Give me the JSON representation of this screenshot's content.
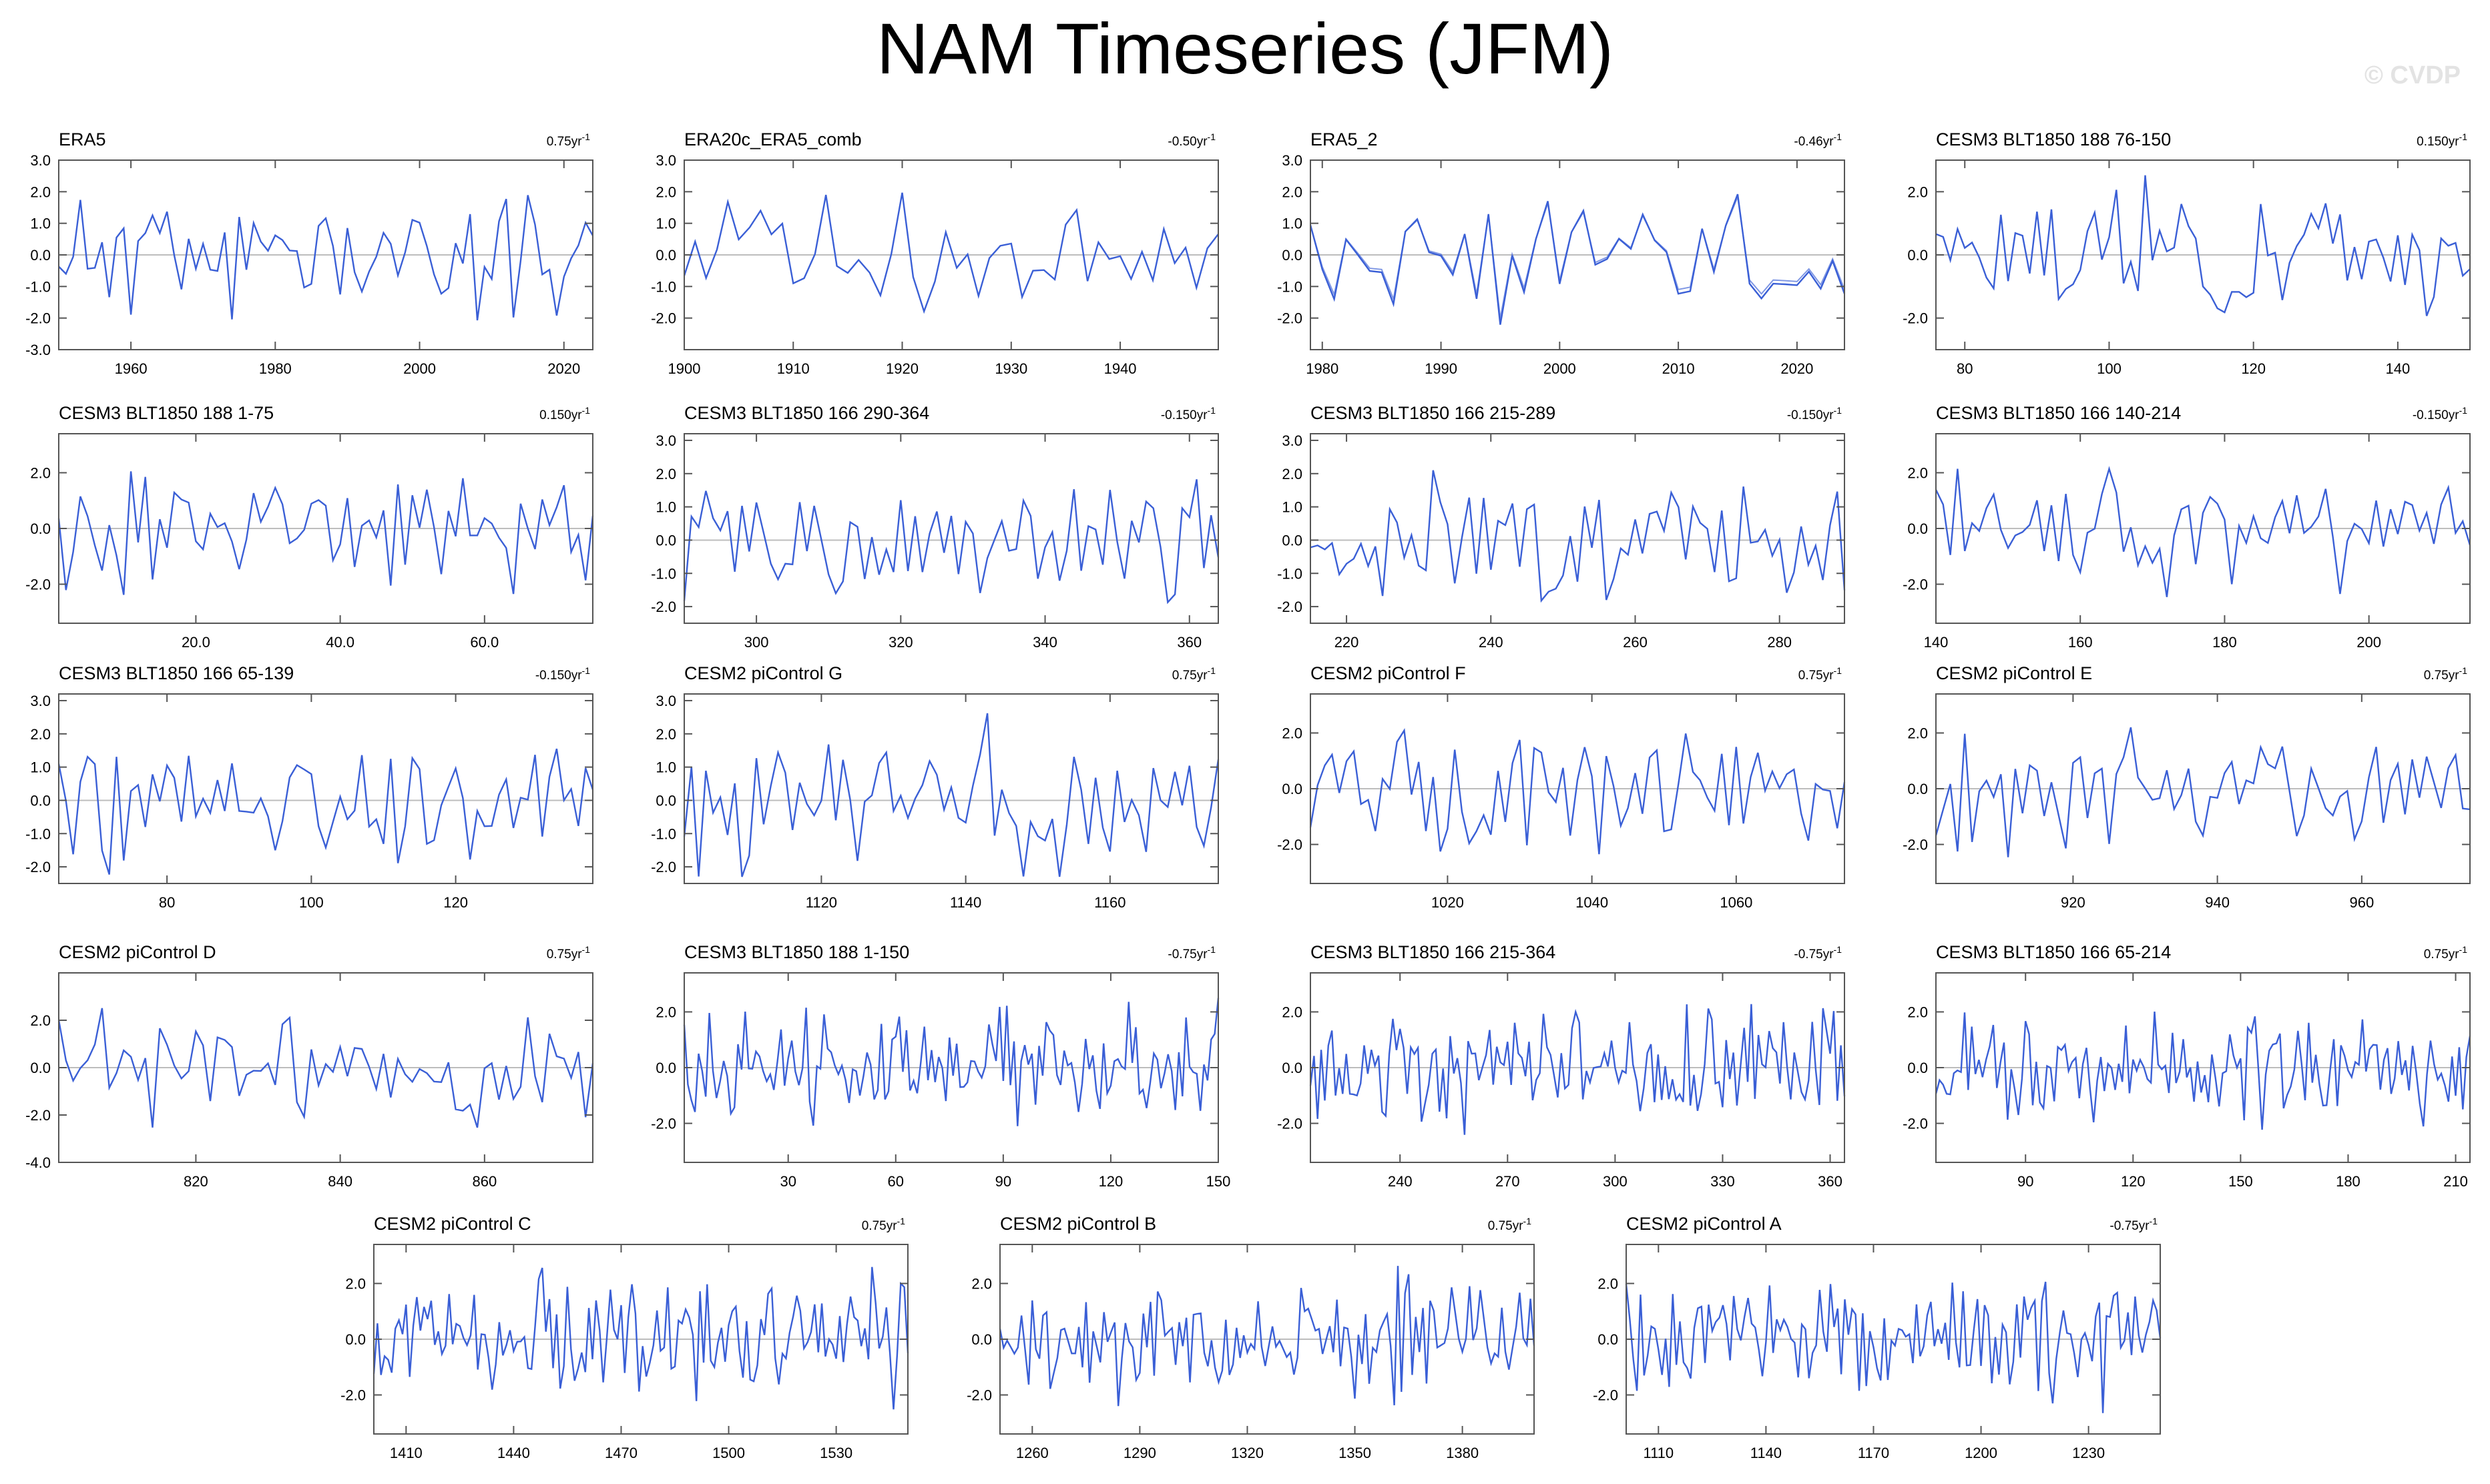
{
  "title": "NAM Timeseries (JFM)",
  "watermark": "© CVDP",
  "colors": {
    "line": "#3a5fd6",
    "zero": "#bdbdbd",
    "frame": "#555555"
  },
  "chart_data": [
    {
      "type": "line",
      "title": "ERA5",
      "trend": "0.75yr",
      "xlim": [
        1950,
        2024
      ],
      "ylim": [
        -3,
        3
      ],
      "xticks": [
        1960,
        1980,
        2000,
        2020
      ],
      "yticks": [
        "3.0",
        "2.0",
        "1.0",
        "0.0",
        "-1.0",
        "-2.0",
        "-3.0"
      ],
      "seed": 11,
      "amp": 1.0,
      "series": [
        {
          "values": []
        }
      ]
    },
    {
      "type": "line",
      "title": "ERA20c_ERA5_comb",
      "trend": "-0.50yr",
      "xlim": [
        1900,
        1949
      ],
      "ylim": [
        -3,
        3
      ],
      "xticks": [
        1900,
        1910,
        1920,
        1930,
        1940
      ],
      "yticks": [
        "3.0",
        "2.0",
        "1.0",
        "0.0",
        "-1.0",
        "-2.0"
      ],
      "seed": 12,
      "amp": 1.0,
      "series": [
        {
          "values": []
        }
      ]
    },
    {
      "type": "line",
      "title": "ERA5_2",
      "trend": "-0.46yr",
      "xlim": [
        1979,
        2024
      ],
      "ylim": [
        -3,
        3
      ],
      "xticks": [
        1980,
        1990,
        2000,
        2010,
        2020
      ],
      "yticks": [
        "3.0",
        "2.0",
        "1.0",
        "0.0",
        "-1.0",
        "-2.0"
      ],
      "seed": 13,
      "amp": 1.0,
      "double": true,
      "series": [
        {
          "values": []
        }
      ]
    },
    {
      "type": "line",
      "title": "CESM3 BLT1850 188 76-150",
      "trend": "0.150yr",
      "xlim": [
        76,
        150
      ],
      "ylim": [
        -3,
        3
      ],
      "xticks": [
        80,
        100,
        120,
        140
      ],
      "yticks": [
        "2.0",
        "0.0",
        "-2.0"
      ],
      "seed": 14,
      "amp": 1.0,
      "series": [
        {
          "values": []
        }
      ]
    },
    {
      "type": "line",
      "title": "CESM3 BLT1850 188 1-75",
      "trend": "0.150yr",
      "xlim": [
        1,
        75
      ],
      "ylim": [
        -3.4,
        3.4
      ],
      "xticks": [
        "20.0",
        "40.0",
        "60.0"
      ],
      "xtickvals": [
        20,
        40,
        60
      ],
      "yticks": [
        "2.0",
        "0.0",
        "-2.0"
      ],
      "seed": 15,
      "amp": 1.0,
      "series": [
        {
          "values": []
        }
      ]
    },
    {
      "type": "line",
      "title": "CESM3 BLT1850 166 290-364",
      "trend": "-0.150yr",
      "xlim": [
        290,
        364
      ],
      "ylim": [
        -2.5,
        3.2
      ],
      "xticks": [
        300,
        320,
        340,
        360
      ],
      "yticks": [
        "3.0",
        "2.0",
        "1.0",
        "0.0",
        "-1.0",
        "-2.0"
      ],
      "seed": 16,
      "amp": 1.0,
      "series": [
        {
          "values": []
        }
      ]
    },
    {
      "type": "line",
      "title": "CESM3 BLT1850 166 215-289",
      "trend": "-0.150yr",
      "xlim": [
        215,
        289
      ],
      "ylim": [
        -2.5,
        3.2
      ],
      "xticks": [
        220,
        240,
        260,
        280
      ],
      "yticks": [
        "3.0",
        "2.0",
        "1.0",
        "0.0",
        "-1.0",
        "-2.0"
      ],
      "seed": 17,
      "amp": 1.0,
      "series": [
        {
          "values": []
        }
      ]
    },
    {
      "type": "line",
      "title": "CESM3 BLT1850 166 140-214",
      "trend": "-0.150yr",
      "xlim": [
        140,
        214
      ],
      "ylim": [
        -3.4,
        3.4
      ],
      "xticks": [
        140,
        160,
        180,
        200
      ],
      "yticks": [
        "2.0",
        "0.0",
        "-2.0"
      ],
      "seed": 18,
      "amp": 1.0,
      "series": [
        {
          "values": []
        }
      ]
    },
    {
      "type": "line",
      "title": "CESM3 BLT1850 166 65-139",
      "trend": "-0.150yr",
      "xlim": [
        65,
        139
      ],
      "ylim": [
        -2.5,
        3.2
      ],
      "xticks": [
        80,
        100,
        120
      ],
      "yticks": [
        "3.0",
        "2.0",
        "1.0",
        "0.0",
        "-1.0",
        "-2.0"
      ],
      "seed": 19,
      "amp": 1.0,
      "series": [
        {
          "values": []
        }
      ]
    },
    {
      "type": "line",
      "title": "CESM2 piControl G",
      "trend": "0.75yr",
      "xlim": [
        1101,
        1175
      ],
      "ylim": [
        -2.5,
        3.2
      ],
      "xticks": [
        1120,
        1140,
        1160
      ],
      "yticks": [
        "3.0",
        "2.0",
        "1.0",
        "0.0",
        "-1.0",
        "-2.0"
      ],
      "seed": 20,
      "amp": 1.0,
      "series": [
        {
          "values": []
        }
      ]
    },
    {
      "type": "line",
      "title": "CESM2 piControl F",
      "trend": "0.75yr",
      "xlim": [
        1001,
        1075
      ],
      "ylim": [
        -3.4,
        3.4
      ],
      "xticks": [
        1020,
        1040,
        1060
      ],
      "yticks": [
        "2.0",
        "0.0",
        "-2.0"
      ],
      "seed": 21,
      "amp": 1.0,
      "series": [
        {
          "values": []
        }
      ]
    },
    {
      "type": "line",
      "title": "CESM2 piControl E",
      "trend": "0.75yr",
      "xlim": [
        901,
        975
      ],
      "ylim": [
        -3.4,
        3.4
      ],
      "xticks": [
        920,
        940,
        960
      ],
      "yticks": [
        "2.0",
        "0.0",
        "-2.0"
      ],
      "seed": 22,
      "amp": 1.0,
      "series": [
        {
          "values": []
        }
      ]
    },
    {
      "type": "line",
      "title": "CESM2 piControl D",
      "trend": "0.75yr",
      "xlim": [
        801,
        875
      ],
      "ylim": [
        -4,
        4
      ],
      "xticks": [
        820,
        840,
        860
      ],
      "yticks": [
        "2.0",
        "0.0",
        "-2.0",
        "-4.0"
      ],
      "seed": 23,
      "amp": 1.1,
      "series": [
        {
          "values": []
        }
      ]
    },
    {
      "type": "line",
      "title": "CESM3 BLT1850 188 1-150",
      "trend": "-0.75yr",
      "xlim": [
        1,
        150
      ],
      "ylim": [
        -3.4,
        3.4
      ],
      "xticks": [
        30,
        60,
        90,
        120,
        150
      ],
      "yticks": [
        "2.0",
        "0.0",
        "-2.0"
      ],
      "seed": 24,
      "amp": 1.0,
      "series": [
        {
          "values": []
        }
      ]
    },
    {
      "type": "line",
      "title": "CESM3 BLT1850 166 215-364",
      "trend": "-0.75yr",
      "xlim": [
        215,
        364
      ],
      "ylim": [
        -3.4,
        3.4
      ],
      "xticks": [
        240,
        270,
        300,
        330,
        360
      ],
      "yticks": [
        "2.0",
        "0.0",
        "-2.0"
      ],
      "seed": 25,
      "amp": 1.0,
      "series": [
        {
          "values": []
        }
      ]
    },
    {
      "type": "line",
      "title": "CESM3 BLT1850 166 65-214",
      "trend": "0.75yr",
      "xlim": [
        65,
        214
      ],
      "ylim": [
        -3.4,
        3.4
      ],
      "xticks": [
        90,
        120,
        150,
        180,
        210
      ],
      "yticks": [
        "2.0",
        "0.0",
        "-2.0"
      ],
      "seed": 26,
      "amp": 1.0,
      "series": [
        {
          "values": []
        }
      ]
    },
    {
      "type": "line",
      "title": "CESM2 piControl C",
      "trend": "0.75yr",
      "xlim": [
        1401,
        1550
      ],
      "ylim": [
        -3.4,
        3.4
      ],
      "xticks": [
        1410,
        1440,
        1470,
        1500,
        1530
      ],
      "yticks": [
        "2.0",
        "0.0",
        "-2.0"
      ],
      "seed": 27,
      "amp": 1.0,
      "series": [
        {
          "values": []
        }
      ]
    },
    {
      "type": "line",
      "title": "CESM2 piControl B",
      "trend": "0.75yr",
      "xlim": [
        1251,
        1400
      ],
      "ylim": [
        -3.4,
        3.4
      ],
      "xticks": [
        1260,
        1290,
        1320,
        1350,
        1380
      ],
      "yticks": [
        "2.0",
        "0.0",
        "-2.0"
      ],
      "seed": 28,
      "amp": 1.0,
      "series": [
        {
          "values": []
        }
      ]
    },
    {
      "type": "line",
      "title": "CESM2 piControl A",
      "trend": "-0.75yr",
      "xlim": [
        1101,
        1250
      ],
      "ylim": [
        -3.4,
        3.4
      ],
      "xticks": [
        1110,
        1140,
        1170,
        1200,
        1230
      ],
      "yticks": [
        "2.0",
        "0.0",
        "-2.0"
      ],
      "seed": 29,
      "amp": 1.0,
      "series": [
        {
          "values": []
        }
      ]
    }
  ]
}
